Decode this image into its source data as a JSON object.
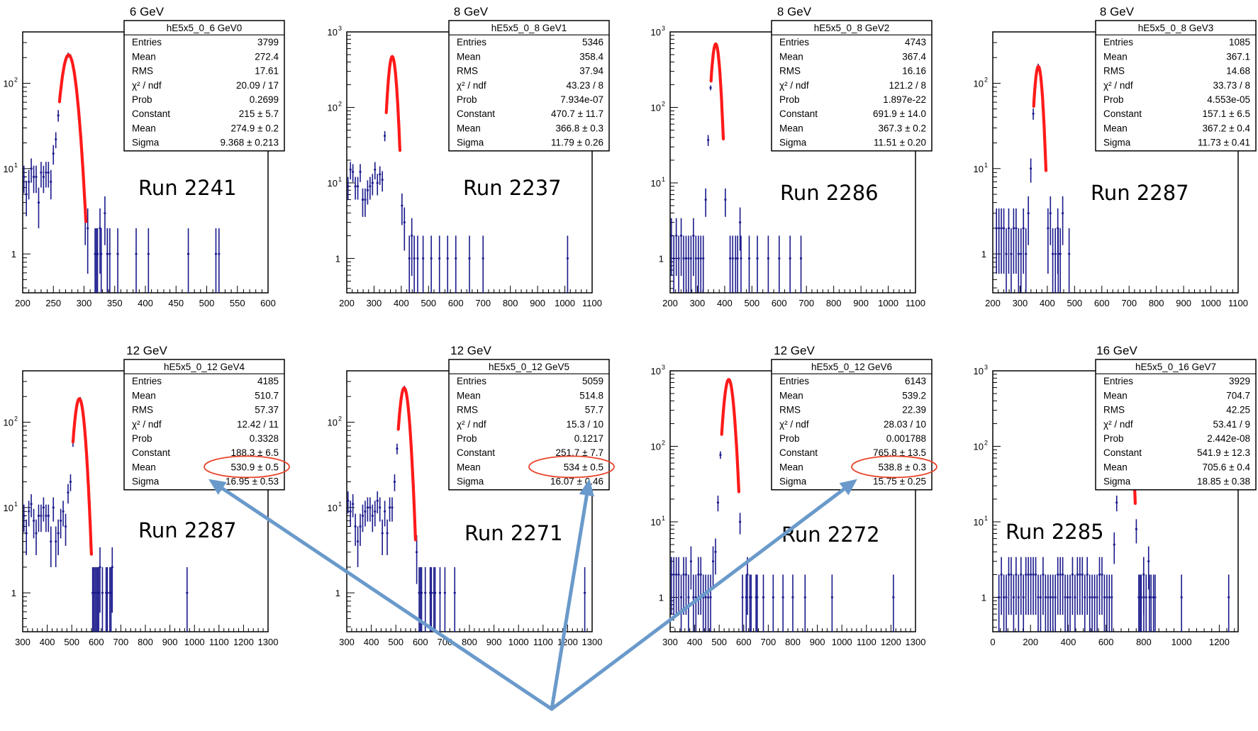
{
  "chart_data": [
    {
      "type": "histogram",
      "title": "6 GeV",
      "run_label": "Run 2241",
      "log_y": true,
      "xlim": [
        200,
        600
      ],
      "ylim": [
        0.35,
        400
      ],
      "x_ticks": [
        200,
        250,
        300,
        350,
        400,
        450,
        500,
        550,
        600
      ],
      "y_ticks": [
        1,
        10,
        100
      ],
      "stats": {
        "name": "hE5x5_0_6 GeV0",
        "rows": [
          {
            "label": "Entries",
            "value": "3799"
          },
          {
            "label": "Mean",
            "value": "272.4"
          },
          {
            "label": "RMS",
            "value": "17.61"
          },
          {
            "label": "χ² / ndf",
            "value": "20.09 / 17"
          },
          {
            "label": "Prob",
            "value": "0.2699"
          },
          {
            "label": "Constant",
            "value": "215 ± 5.7"
          },
          {
            "label": "Mean",
            "value": "274.9 ± 0.2"
          },
          {
            "label": "Sigma",
            "value": "9.368 ± 0.213"
          }
        ]
      },
      "fit": {
        "constant": 215,
        "mean": 274.9,
        "sigma": 9.368,
        "range": [
          260,
          303
        ]
      },
      "tail": {
        "range": [
          200,
          255
        ],
        "level": 6.5
      },
      "outliers": [
        320,
        328,
        338,
        355,
        385,
        405,
        470,
        515,
        520
      ]
    },
    {
      "type": "histogram",
      "title": "8 GeV",
      "run_label": "Run 2237",
      "log_y": true,
      "xlim": [
        200,
        1100
      ],
      "ylim": [
        0.35,
        1000
      ],
      "x_ticks": [
        200,
        300,
        400,
        500,
        600,
        700,
        800,
        900,
        1000,
        1100
      ],
      "y_ticks": [
        1,
        10,
        100,
        1000
      ],
      "stats": {
        "name": "hE5x5_0_8 GeV1",
        "rows": [
          {
            "label": "Entries",
            "value": "5346"
          },
          {
            "label": "Mean",
            "value": "358.4"
          },
          {
            "label": "RMS",
            "value": "37.94"
          },
          {
            "label": "χ² / ndf",
            "value": "43.23 / 8"
          },
          {
            "label": "Prob",
            "value": "7.934e-07"
          },
          {
            "label": "Constant",
            "value": "470.7 ± 11.7"
          },
          {
            "label": "Mean",
            "value": "366.8 ± 0.3"
          },
          {
            "label": "Sigma",
            "value": "11.79 ± 0.26"
          }
        ]
      },
      "fit": {
        "constant": 470.7,
        "mean": 366.8,
        "sigma": 11.79,
        "range": [
          345,
          395
        ]
      },
      "tail": {
        "range": [
          200,
          340
        ],
        "level": 10
      },
      "outliers": [
        460,
        480,
        510,
        540,
        570,
        600,
        650,
        700,
        1010
      ]
    },
    {
      "type": "histogram",
      "title": "8 GeV",
      "run_label": "Run 2286",
      "log_y": true,
      "xlim": [
        200,
        1100
      ],
      "ylim": [
        0.35,
        1000
      ],
      "x_ticks": [
        200,
        300,
        400,
        500,
        600,
        700,
        800,
        900,
        1000,
        1100
      ],
      "y_ticks": [
        1,
        10,
        100,
        1000
      ],
      "stats": {
        "name": "hE5x5_0_8 GeV2",
        "rows": [
          {
            "label": "Entries",
            "value": "4743"
          },
          {
            "label": "Mean",
            "value": "367.4"
          },
          {
            "label": "RMS",
            "value": "16.16"
          },
          {
            "label": "χ² / ndf",
            "value": "121.2 / 8"
          },
          {
            "label": "Prob",
            "value": "1.897e-22"
          },
          {
            "label": "Constant",
            "value": "691.9 ± 14.0"
          },
          {
            "label": "Mean",
            "value": "367.3 ± 0.2"
          },
          {
            "label": "Sigma",
            "value": "11.51 ± 0.20"
          }
        ]
      },
      "fit": {
        "constant": 691.9,
        "mean": 367.3,
        "sigma": 11.51,
        "range": [
          350,
          395
        ]
      },
      "tail": {
        "range": [
          200,
          335
        ],
        "level": 1.5
      },
      "outliers": [
        420,
        440,
        460,
        490,
        520,
        560,
        600,
        640,
        680
      ]
    },
    {
      "type": "histogram",
      "title": "8 GeV",
      "run_label": "Run 2287",
      "log_y": true,
      "xlim": [
        200,
        1100
      ],
      "ylim": [
        0.35,
        400
      ],
      "x_ticks": [
        200,
        300,
        400,
        500,
        600,
        700,
        800,
        900,
        1000,
        1100
      ],
      "y_ticks": [
        1,
        10,
        100
      ],
      "stats": {
        "name": "hE5x5_0_8 GeV3",
        "rows": [
          {
            "label": "Entries",
            "value": "1085"
          },
          {
            "label": "Mean",
            "value": "367.1"
          },
          {
            "label": "RMS",
            "value": "14.68"
          },
          {
            "label": "χ² / ndf",
            "value": "33.73 / 8"
          },
          {
            "label": "Prob",
            "value": "4.553e-05"
          },
          {
            "label": "Constant",
            "value": "157.1 ± 6.5"
          },
          {
            "label": "Mean",
            "value": "367.2 ± 0.4"
          },
          {
            "label": "Sigma",
            "value": "11.73 ± 0.41"
          }
        ]
      },
      "fit": {
        "constant": 157.1,
        "mean": 367.2,
        "sigma": 11.73,
        "range": [
          350,
          395
        ]
      },
      "tail": {
        "range": [
          210,
          335
        ],
        "level": 1.5
      },
      "outliers": [
        420,
        440,
        480
      ]
    },
    {
      "type": "histogram",
      "title": "12 GeV",
      "run_label": "Run 2287",
      "log_y": true,
      "xlim": [
        300,
        1300
      ],
      "ylim": [
        0.35,
        400
      ],
      "x_ticks": [
        300,
        400,
        500,
        600,
        700,
        800,
        900,
        1000,
        1100,
        1200,
        1300
      ],
      "y_ticks": [
        1,
        10,
        100
      ],
      "stats": {
        "name": "hE5x5_0_12 GeV4",
        "rows": [
          {
            "label": "Entries",
            "value": "4185"
          },
          {
            "label": "Mean",
            "value": "510.7"
          },
          {
            "label": "RMS",
            "value": "57.37"
          },
          {
            "label": "χ² / ndf",
            "value": "12.42 / 11"
          },
          {
            "label": "Prob",
            "value": "0.3328"
          },
          {
            "label": "Constant",
            "value": "188.3 ± 6.5"
          },
          {
            "label": "Mean",
            "value": "530.9 ± 0.5"
          },
          {
            "label": "Sigma",
            "value": "16.95 ± 0.53"
          }
        ]
      },
      "fit": {
        "constant": 188.3,
        "mean": 530.9,
        "sigma": 16.95,
        "range": [
          505,
          580
        ]
      },
      "tail": {
        "range": [
          300,
          490
        ],
        "level": 7
      },
      "outliers": [
        590,
        600,
        610,
        625,
        640,
        660,
        970
      ]
    },
    {
      "type": "histogram",
      "title": "12 GeV",
      "run_label": "Run 2271",
      "log_y": true,
      "xlim": [
        300,
        1300
      ],
      "ylim": [
        0.35,
        400
      ],
      "x_ticks": [
        300,
        400,
        500,
        600,
        700,
        800,
        900,
        1000,
        1100,
        1200,
        1300
      ],
      "y_ticks": [
        1,
        10,
        100
      ],
      "stats": {
        "name": "hE5x5_0_12 GeV5",
        "rows": [
          {
            "label": "Entries",
            "value": "5059"
          },
          {
            "label": "Mean",
            "value": "514.8"
          },
          {
            "label": "RMS",
            "value": "57.7"
          },
          {
            "label": "χ² / ndf",
            "value": "15.3 / 10"
          },
          {
            "label": "Prob",
            "value": "0.1217"
          },
          {
            "label": "Constant",
            "value": "251.7 ± 7.7"
          },
          {
            "label": "Mean",
            "value": "534 ± 0.5"
          },
          {
            "label": "Sigma",
            "value": "16.07 ± 0.46"
          }
        ]
      },
      "fit": {
        "constant": 251.7,
        "mean": 534,
        "sigma": 16.07,
        "range": [
          510,
          580
        ]
      },
      "tail": {
        "range": [
          300,
          495
        ],
        "level": 8
      },
      "outliers": [
        600,
        620,
        640,
        660,
        680,
        700,
        740,
        1270
      ]
    },
    {
      "type": "histogram",
      "title": "12 GeV",
      "run_label": "Run 2272",
      "log_y": true,
      "xlim": [
        300,
        1300
      ],
      "ylim": [
        0.35,
        1000
      ],
      "x_ticks": [
        300,
        400,
        500,
        600,
        700,
        800,
        900,
        1000,
        1100,
        1200,
        1300
      ],
      "y_ticks": [
        1,
        10,
        100,
        1000
      ],
      "stats": {
        "name": "hE5x5_0_12 GeV6",
        "rows": [
          {
            "label": "Entries",
            "value": "6143"
          },
          {
            "label": "Mean",
            "value": "539.2"
          },
          {
            "label": "RMS",
            "value": "22.39"
          },
          {
            "label": "χ² / ndf",
            "value": "28.03 / 10"
          },
          {
            "label": "Prob",
            "value": "0.001788"
          },
          {
            "label": "Constant",
            "value": "765.8 ± 13.5"
          },
          {
            "label": "Mean",
            "value": "538.8 ± 0.3"
          },
          {
            "label": "Sigma",
            "value": "15.75 ± 0.25"
          }
        ]
      },
      "fit": {
        "constant": 765.8,
        "mean": 538.8,
        "sigma": 15.75,
        "range": [
          510,
          580
        ]
      },
      "tail": {
        "range": [
          300,
          495
        ],
        "level": 1.8
      },
      "outliers": [
        610,
        630,
        650,
        680,
        720,
        760,
        800,
        850,
        960,
        1210
      ]
    },
    {
      "type": "histogram",
      "title": "16 GeV",
      "run_label": "Run 2285",
      "log_y": true,
      "xlim": [
        0,
        1300
      ],
      "ylim": [
        0.35,
        1000
      ],
      "x_ticks": [
        0,
        200,
        400,
        600,
        800,
        1000,
        1200
      ],
      "y_ticks": [
        1,
        10,
        100,
        1000
      ],
      "stats": {
        "name": "hE5x5_0_16 GeV7",
        "rows": [
          {
            "label": "Entries",
            "value": "3929"
          },
          {
            "label": "Mean",
            "value": "704.7"
          },
          {
            "label": "RMS",
            "value": "42.25"
          },
          {
            "label": "χ² / ndf",
            "value": "53.41 / 9"
          },
          {
            "label": "Prob",
            "value": "2.442e-08"
          },
          {
            "label": "Constant",
            "value": "541.9 ± 12.3"
          },
          {
            "label": "Mean",
            "value": "705.6 ± 0.4"
          },
          {
            "label": "Sigma",
            "value": "18.85 ± 0.38"
          }
        ]
      },
      "fit": {
        "constant": 541.9,
        "mean": 705.6,
        "sigma": 18.85,
        "range": [
          680,
          755
        ]
      },
      "tail": {
        "range": [
          30,
          650
        ],
        "level": 1.5
      },
      "outliers": [
        780,
        800,
        830,
        860,
        1000,
        1250
      ]
    }
  ],
  "colors": {
    "histogram": "#1a1a8c",
    "fit": "#ff1a1a",
    "highlight": "#e8452c",
    "arrow": "#6a9acb",
    "frame": "#000000"
  },
  "annotations": {
    "highlighted_cells": [
      {
        "panel": 4,
        "row": 6
      },
      {
        "panel": 5,
        "row": 6
      },
      {
        "panel": 6,
        "row": 6
      }
    ],
    "arrows_target": "highlighted Mean fit values"
  }
}
